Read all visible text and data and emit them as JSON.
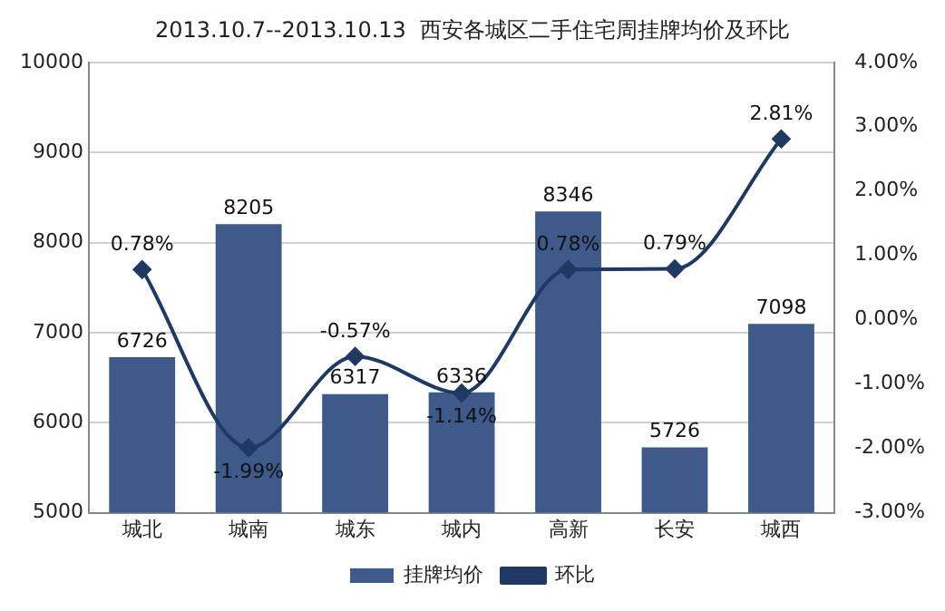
{
  "chart_data": {
    "type": "bar",
    "title": "2013.10.7--2013.10.13  西安各城区二手住宅周挂牌均价及环比",
    "categories": [
      "城北",
      "城南",
      "城东",
      "城内",
      "高新",
      "长安",
      "城西"
    ],
    "series": [
      {
        "name": "挂牌均价",
        "color": "#3d5a8a",
        "values": [
          6726,
          8205,
          6317,
          6336,
          8346,
          5726,
          7098
        ],
        "value_labels": [
          "6726",
          "8205",
          "6317",
          "6336",
          "8346",
          "5726",
          "7098"
        ]
      },
      {
        "name": "环比",
        "type": "line",
        "axis": "y2",
        "color": "#1f3864",
        "marker": "diamond",
        "values": [
          0.78,
          -1.99,
          -0.57,
          -1.14,
          0.78,
          0.79,
          2.81
        ],
        "value_labels": [
          "0.78%",
          "-1.99%",
          "-0.57%",
          "-1.14%",
          "0.78%",
          "0.79%",
          "2.81%"
        ]
      }
    ],
    "ylim": [
      5000,
      10000
    ],
    "yticks": [
      5000,
      6000,
      7000,
      8000,
      9000,
      10000
    ],
    "y2lim": [
      -3,
      4
    ],
    "y2ticks": [
      {
        "value": -3,
        "label": "-3.00%"
      },
      {
        "value": -2,
        "label": "-2.00%"
      },
      {
        "value": -1,
        "label": "-1.00%"
      },
      {
        "value": 0,
        "label": "0.00%"
      },
      {
        "value": 1,
        "label": "1.00%"
      },
      {
        "value": 2,
        "label": "2.00%"
      },
      {
        "value": 3,
        "label": "3.00%"
      },
      {
        "value": 4,
        "label": "4.00%"
      }
    ],
    "grid": "y",
    "legend": "bottom"
  }
}
